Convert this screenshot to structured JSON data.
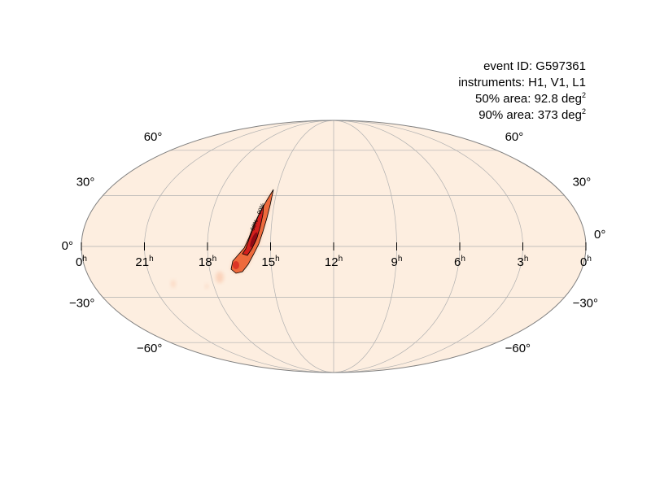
{
  "info": {
    "event_id": "event ID: G597361",
    "instruments": "instruments: H1, V1, L1",
    "area50_prefix": "50% area: 92.8 deg",
    "area90_prefix": "90% area: 373 deg",
    "area_unit_sup": "2"
  },
  "map": {
    "projection": "mollweide",
    "background_color": "#fdeee0",
    "outline_color": "#808080",
    "grid_color": "#b0b0b0",
    "hot_colors": [
      "#f5a278",
      "#ee6a3c",
      "#d4201c",
      "#8f0a14"
    ],
    "ra_labels": [
      {
        "text": "0",
        "sup": "h"
      },
      {
        "text": "21",
        "sup": "h"
      },
      {
        "text": "18",
        "sup": "h"
      },
      {
        "text": "15",
        "sup": "h"
      },
      {
        "text": "12",
        "sup": "h"
      },
      {
        "text": "9",
        "sup": "h"
      },
      {
        "text": "6",
        "sup": "h"
      },
      {
        "text": "3",
        "sup": "h"
      },
      {
        "text": "0",
        "sup": "h"
      }
    ],
    "dec_labels_left": [
      "60°",
      "30°",
      "0°",
      "−30°",
      "−60°"
    ],
    "dec_labels_right": [
      "60°",
      "30°",
      "0°",
      "−30°",
      "−60°"
    ],
    "contour_labels": [
      "50%",
      "90%"
    ]
  }
}
